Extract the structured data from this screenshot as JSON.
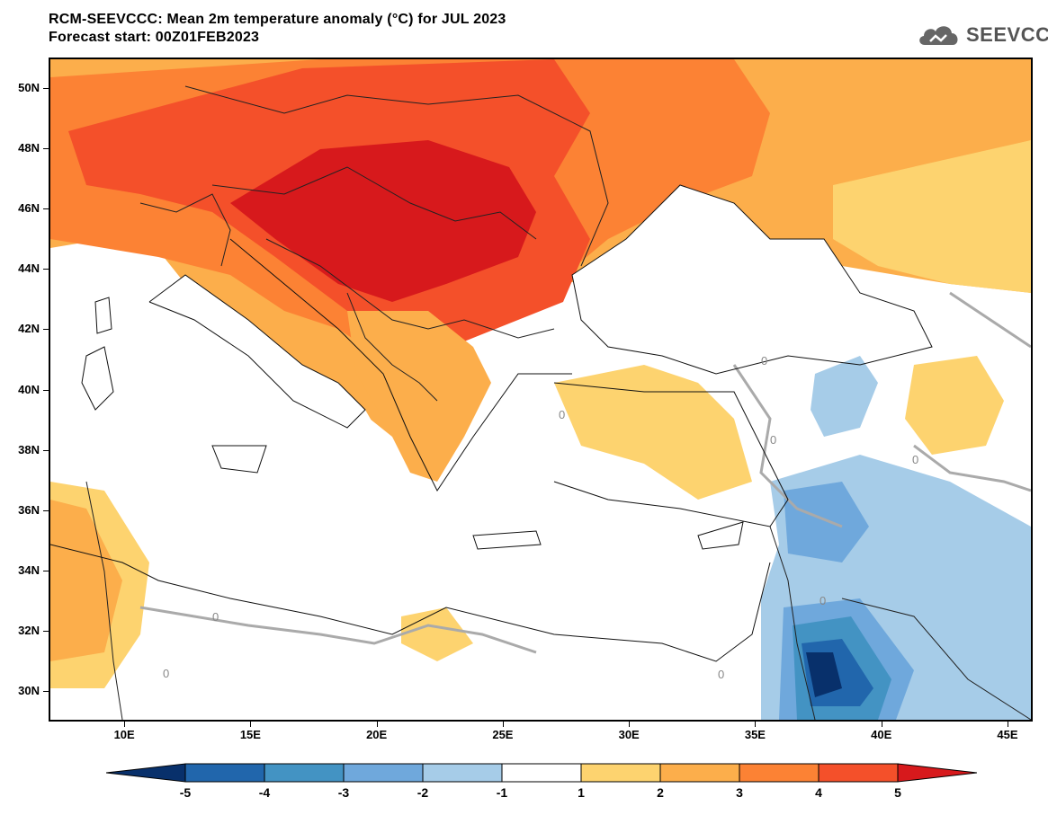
{
  "title": {
    "line1": "RCM-SEEVCCC: Mean 2m temperature anomaly (°C) for JUL 2023",
    "line2": "Forecast start: 00Z01FEB2023"
  },
  "logo": {
    "text": "SEEVCCC",
    "icon": "cloud-icon"
  },
  "map": {
    "lon_min": 7,
    "lon_max": 46,
    "lat_min": 29,
    "lat_max": 51,
    "lat_labels": [
      {
        "lat": 50,
        "text": "50N"
      },
      {
        "lat": 48,
        "text": "48N"
      },
      {
        "lat": 46,
        "text": "46N"
      },
      {
        "lat": 44,
        "text": "44N"
      },
      {
        "lat": 42,
        "text": "42N"
      },
      {
        "lat": 40,
        "text": "40N"
      },
      {
        "lat": 38,
        "text": "38N"
      },
      {
        "lat": 36,
        "text": "36N"
      },
      {
        "lat": 34,
        "text": "34N"
      },
      {
        "lat": 32,
        "text": "32N"
      },
      {
        "lat": 30,
        "text": "30N"
      }
    ],
    "lon_labels": [
      {
        "lon": 10,
        "text": "10E"
      },
      {
        "lon": 15,
        "text": "15E"
      },
      {
        "lon": 20,
        "text": "20E"
      },
      {
        "lon": 25,
        "text": "25E"
      },
      {
        "lon": 30,
        "text": "30E"
      },
      {
        "lon": 35,
        "text": "35E"
      },
      {
        "lon": 40,
        "text": "40E"
      },
      {
        "lon": 45,
        "text": "45E"
      }
    ],
    "contour_zero_label": "0"
  },
  "colorbar": {
    "levels": [
      "-5",
      "-4",
      "-3",
      "-2",
      "-1",
      "1",
      "2",
      "3",
      "4",
      "5"
    ],
    "colors": [
      "#08306b",
      "#2166ac",
      "#4393c3",
      "#6fa8dc",
      "#a6cce8",
      "#ffffff",
      "#fdd36f",
      "#fcae4b",
      "#fc8234",
      "#f4502a",
      "#d7191c"
    ]
  }
}
